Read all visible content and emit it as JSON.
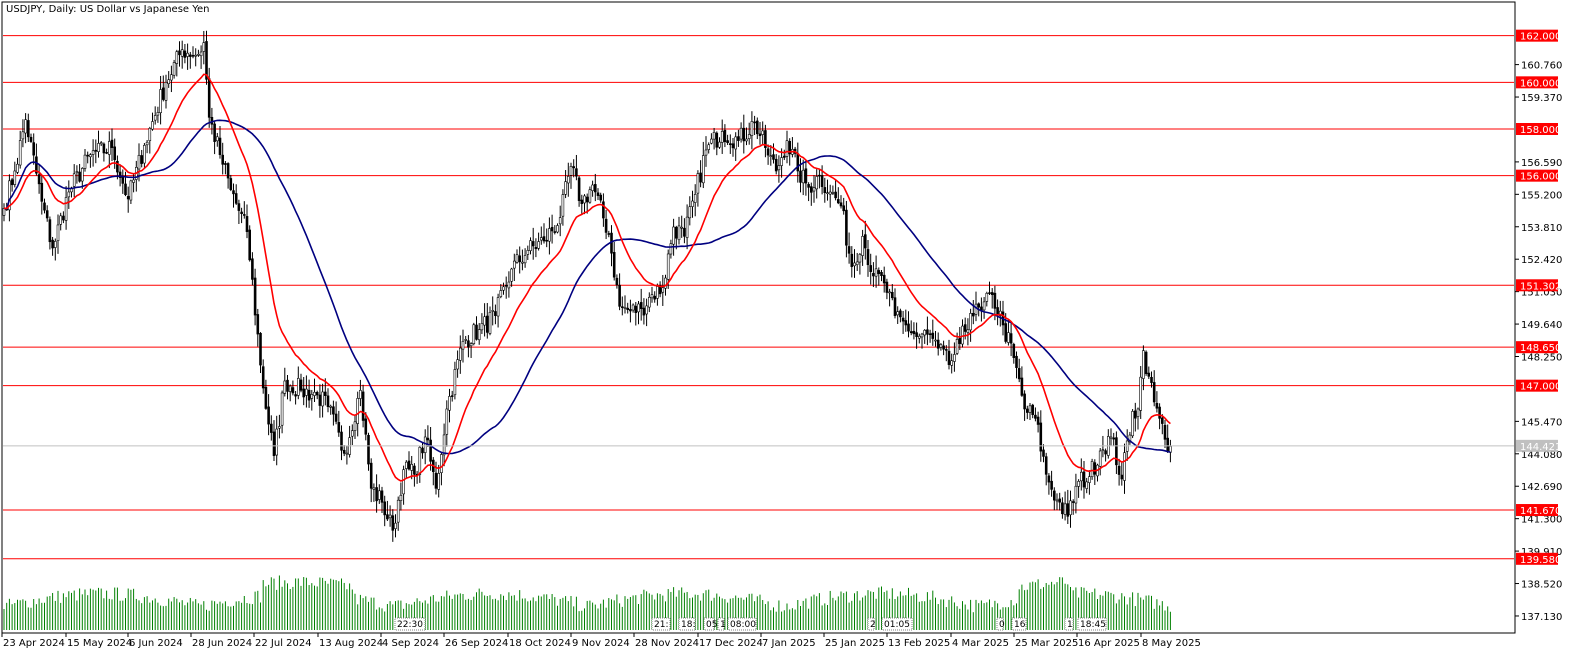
{
  "header": {
    "title": "USDJPY, Daily:  US Dollar vs Japanese Yen"
  },
  "colors": {
    "background": "#ffffff",
    "frame": "#000000",
    "level_line": "#ff0000",
    "level_label_bg": "#ff0000",
    "level_label_text": "#ffffff",
    "ma_fast": "#ff0000",
    "ma_slow": "#000080",
    "candle_bull_body": "#ffffff",
    "candle_bear_body": "#000000",
    "volume": "#008000",
    "current_price_line": "#c0c0c0",
    "current_price_label_bg": "#c0c0c0"
  },
  "chart_data": {
    "type": "candlestick",
    "symbol": "USDJPY",
    "timeframe": "Daily",
    "y_range": [
      136.4,
      163.4
    ],
    "y_ticks": [
      "160.760",
      "159.370",
      "156.590",
      "155.200",
      "153.810",
      "152.420",
      "151.030",
      "149.640",
      "148.250",
      "145.470",
      "144.080",
      "142.690",
      "141.300",
      "139.910",
      "138.520",
      "137.130"
    ],
    "levels": [
      "162.000",
      "160.000",
      "158.000",
      "156.000",
      "151.302",
      "148.650",
      "147.000",
      "141.670",
      "139.580"
    ],
    "current_price": "144.421",
    "x_labels": [
      "23 Apr 2024",
      "15 May 2024",
      "6 Jun 2024",
      "28 Jun 2024",
      "22 Jul 2024",
      "13 Aug 2024",
      "4 Sep 2024",
      "26 Sep 2024",
      "18 Oct 2024",
      "9 Nov 2024",
      "28 Nov 2024",
      "17 Dec 2024",
      "7 Jan 2025",
      "25 Jan 2025",
      "13 Feb 2025",
      "4 Mar 2025",
      "25 Mar 2025",
      "16 Apr 2025",
      "8 May 2025"
    ],
    "session_tags": [
      "22:30",
      "21:",
      "18:",
      "05",
      "1",
      "08:00",
      "2",
      "01:05",
      "0",
      "16",
      "1",
      "18:45"
    ],
    "close_anchors": [
      [
        0,
        154.6
      ],
      [
        4,
        156.2
      ],
      [
        8,
        158.4
      ],
      [
        14,
        154.9
      ],
      [
        18,
        152.9
      ],
      [
        24,
        155.3
      ],
      [
        32,
        156.9
      ],
      [
        40,
        157.2
      ],
      [
        46,
        155.0
      ],
      [
        52,
        157.3
      ],
      [
        60,
        160.0
      ],
      [
        66,
        161.4
      ],
      [
        72,
        161.2
      ],
      [
        74,
        161.7
      ],
      [
        76,
        158.5
      ],
      [
        80,
        156.9
      ],
      [
        84,
        155.4
      ],
      [
        90,
        153.6
      ],
      [
        96,
        146.9
      ],
      [
        100,
        144.0
      ],
      [
        104,
        147.2
      ],
      [
        110,
        146.8
      ],
      [
        116,
        146.6
      ],
      [
        120,
        146.1
      ],
      [
        126,
        144.1
      ],
      [
        132,
        146.8
      ],
      [
        136,
        142.6
      ],
      [
        140,
        142.0
      ],
      [
        144,
        140.8
      ],
      [
        148,
        143.4
      ],
      [
        152,
        143.2
      ],
      [
        156,
        144.8
      ],
      [
        160,
        142.6
      ],
      [
        164,
        146.0
      ],
      [
        170,
        148.9
      ],
      [
        176,
        149.4
      ],
      [
        182,
        150.0
      ],
      [
        188,
        152.0
      ],
      [
        194,
        152.8
      ],
      [
        200,
        153.2
      ],
      [
        206,
        154.2
      ],
      [
        210,
        156.4
      ],
      [
        214,
        154.8
      ],
      [
        218,
        155.6
      ],
      [
        224,
        153.5
      ],
      [
        228,
        150.4
      ],
      [
        232,
        150.2
      ],
      [
        236,
        150.3
      ],
      [
        240,
        150.9
      ],
      [
        244,
        151.2
      ],
      [
        248,
        153.8
      ],
      [
        252,
        153.4
      ],
      [
        256,
        155.2
      ],
      [
        260,
        157.1
      ],
      [
        266,
        157.9
      ],
      [
        272,
        157.5
      ],
      [
        278,
        158.3
      ],
      [
        282,
        157.2
      ],
      [
        286,
        156.2
      ],
      [
        290,
        157.5
      ],
      [
        294,
        156.2
      ],
      [
        298,
        155.5
      ],
      [
        302,
        156.0
      ],
      [
        306,
        155.3
      ],
      [
        310,
        154.7
      ],
      [
        314,
        152.1
      ],
      [
        318,
        153.4
      ],
      [
        322,
        151.7
      ],
      [
        326,
        151.4
      ],
      [
        330,
        150.0
      ],
      [
        334,
        149.6
      ],
      [
        338,
        149.1
      ],
      [
        342,
        149.2
      ],
      [
        346,
        148.6
      ],
      [
        350,
        147.9
      ],
      [
        354,
        148.8
      ],
      [
        358,
        150.1
      ],
      [
        362,
        150.2
      ],
      [
        366,
        150.9
      ],
      [
        370,
        149.6
      ],
      [
        374,
        148.2
      ],
      [
        378,
        146.0
      ],
      [
        382,
        145.6
      ],
      [
        386,
        143.2
      ],
      [
        390,
        142.1
      ],
      [
        394,
        141.4
      ],
      [
        398,
        142.9
      ],
      [
        402,
        143.1
      ],
      [
        406,
        144.2
      ],
      [
        410,
        144.8
      ],
      [
        414,
        143.0
      ],
      [
        418,
        145.9
      ],
      [
        420,
        146.0
      ],
      [
        422,
        148.5
      ],
      [
        424,
        147.4
      ],
      [
        426,
        146.3
      ],
      [
        428,
        145.6
      ],
      [
        430,
        144.7
      ],
      [
        432,
        144.4
      ]
    ]
  }
}
